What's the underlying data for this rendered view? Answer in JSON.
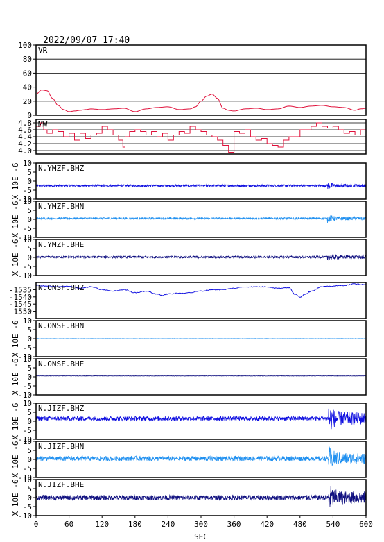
{
  "header": {
    "datetime": "2022/09/07  17:40"
  },
  "chart_data": {
    "type": "line",
    "xlabel": "SEC",
    "xlim": [
      0,
      600
    ],
    "xticks": [
      0,
      60,
      120,
      180,
      240,
      300,
      360,
      420,
      480,
      540,
      600
    ],
    "colors": {
      "red": "#e0103a",
      "blue": "#1010e0",
      "lightblue": "#2090f0",
      "navy": "#101080"
    },
    "panels": [
      {
        "label": "VR",
        "ylim": [
          0,
          100
        ],
        "yticks": [
          0,
          20,
          40,
          60,
          80,
          100
        ],
        "yticklabels": [
          "0",
          "20",
          "40",
          "60",
          "80",
          "100"
        ],
        "grid": true,
        "color": "red",
        "x": [
          0,
          10,
          20,
          30,
          40,
          50,
          60,
          70,
          80,
          90,
          100,
          120,
          140,
          160,
          180,
          200,
          220,
          240,
          260,
          280,
          290,
          300,
          310,
          320,
          330,
          340,
          350,
          360,
          380,
          400,
          420,
          440,
          460,
          480,
          500,
          520,
          540,
          560,
          580,
          590,
          600
        ],
        "y": [
          30,
          36,
          35,
          24,
          14,
          8,
          5,
          6,
          7,
          8,
          9,
          8,
          9,
          10,
          5,
          9,
          11,
          12,
          8,
          9,
          12,
          20,
          27,
          30,
          24,
          10,
          7,
          6,
          9,
          10,
          8,
          9,
          13,
          11,
          13,
          14,
          12,
          11,
          7,
          9,
          10
        ]
      },
      {
        "label": "MW",
        "ylim": [
          3.9,
          4.9
        ],
        "yticks": [
          4.0,
          4.2,
          4.4,
          4.6,
          4.8
        ],
        "yticklabels": [
          "4.0",
          "4.2",
          "4.4",
          "4.6",
          "4.8"
        ],
        "grid": true,
        "color": "red",
        "x": [
          0,
          8,
          14,
          20,
          30,
          40,
          50,
          60,
          70,
          80,
          90,
          100,
          110,
          120,
          130,
          140,
          150,
          158,
          162,
          170,
          180,
          190,
          200,
          210,
          220,
          230,
          240,
          250,
          260,
          270,
          280,
          290,
          300,
          310,
          320,
          330,
          340,
          350,
          360,
          370,
          380,
          390,
          400,
          410,
          420,
          430,
          440,
          450,
          460,
          480,
          500,
          510,
          520,
          530,
          540,
          550,
          560,
          570,
          580,
          590,
          600
        ],
        "y": [
          4.7,
          4.8,
          4.6,
          4.5,
          4.6,
          4.55,
          4.4,
          4.5,
          4.3,
          4.5,
          4.35,
          4.45,
          4.5,
          4.7,
          4.6,
          4.45,
          4.3,
          4.1,
          4.4,
          4.55,
          4.6,
          4.55,
          4.45,
          4.55,
          4.4,
          4.5,
          4.3,
          4.45,
          4.55,
          4.5,
          4.7,
          4.6,
          4.55,
          4.45,
          4.4,
          4.3,
          4.15,
          3.95,
          4.55,
          4.5,
          4.6,
          4.4,
          4.3,
          4.35,
          4.2,
          4.15,
          4.1,
          4.3,
          4.4,
          4.6,
          4.7,
          4.8,
          4.7,
          4.65,
          4.7,
          4.6,
          4.5,
          4.55,
          4.45,
          4.6,
          4.55
        ]
      },
      {
        "label": "N.YMZF.BHZ",
        "ylabel": "X 10E -6",
        "ylim": [
          -10,
          10
        ],
        "yticks": [
          -10,
          -5,
          0,
          5,
          10
        ],
        "yticklabels": [
          "-10",
          "-5",
          "0",
          "5",
          "10"
        ],
        "color": "blue",
        "trace": {
          "center": -2.5,
          "amp": 0.6,
          "burst_start": 530,
          "burst_amp": 0.9
        }
      },
      {
        "label": "N.YMZF.BHN",
        "ylabel": "X 10E -6",
        "ylim": [
          -10,
          10
        ],
        "yticks": [
          -10,
          -5,
          0,
          5,
          10
        ],
        "yticklabels": [
          "-10",
          "-5",
          "0",
          "5",
          "10"
        ],
        "color": "lightblue",
        "trace": {
          "center": 0.5,
          "amp": 0.5,
          "burst_start": 530,
          "burst_amp": 1.0
        }
      },
      {
        "label": "N.YMZF.BHE",
        "ylabel": "X 10E -6",
        "ylim": [
          -10,
          10
        ],
        "yticks": [
          -10,
          -5,
          0,
          5,
          10
        ],
        "yticklabels": [
          "-10",
          "-5",
          "0",
          "5",
          "10"
        ],
        "color": "navy",
        "trace": {
          "center": 0.2,
          "amp": 0.6,
          "burst_start": 530,
          "burst_amp": 1.0
        }
      },
      {
        "label": "N.ONSF.BHZ",
        "ylim": [
          -1555,
          -1530
        ],
        "yticks": [
          -1535,
          -1540,
          -1545,
          -1550
        ],
        "yticklabels": [
          "-1535",
          "-1540",
          "-1545",
          "-1550"
        ],
        "color": "blue",
        "x": [
          0,
          20,
          40,
          60,
          80,
          100,
          120,
          140,
          160,
          180,
          200,
          220,
          230,
          240,
          260,
          280,
          300,
          320,
          340,
          360,
          380,
          400,
          420,
          440,
          460,
          470,
          480,
          490,
          500,
          520,
          540,
          560,
          580,
          600
        ],
        "y": [
          -1532,
          -1532.5,
          -1533,
          -1532.5,
          -1534,
          -1533,
          -1535,
          -1536,
          -1535,
          -1537,
          -1536,
          -1538,
          -1539,
          -1538,
          -1537.5,
          -1537,
          -1536,
          -1535,
          -1535,
          -1534,
          -1533,
          -1533,
          -1533,
          -1534,
          -1533.5,
          -1538,
          -1540,
          -1538,
          -1536,
          -1533,
          -1532.5,
          -1532,
          -1531,
          -1531.5
        ]
      },
      {
        "label": "N.ONSF.BHN",
        "ylabel": "X 10E -6",
        "ylim": [
          -10,
          10
        ],
        "yticks": [
          -10,
          -5,
          0,
          5,
          10
        ],
        "yticklabels": [
          "-10",
          "-5",
          "0",
          "5",
          "10"
        ],
        "color": "lightblue",
        "trace": {
          "center": 0.0,
          "amp": 0.1,
          "burst_start": 600,
          "burst_amp": 0.1
        }
      },
      {
        "label": "N.ONSF.BHE",
        "ylabel": "X 10E -6",
        "ylim": [
          -10,
          10
        ],
        "yticks": [
          -10,
          -5,
          0,
          5,
          10
        ],
        "yticklabels": [
          "-10",
          "-5",
          "0",
          "5",
          "10"
        ],
        "color": "navy",
        "trace": {
          "center": 0.5,
          "amp": 0.1,
          "burst_start": 600,
          "burst_amp": 0.1
        }
      },
      {
        "label": "N.JIZF.BHZ",
        "ylabel": "X 10E -6",
        "ylim": [
          -10,
          10
        ],
        "yticks": [
          -10,
          -5,
          0,
          5,
          10
        ],
        "yticklabels": [
          "-10",
          "-5",
          "0",
          "5",
          "10"
        ],
        "color": "blue",
        "trace": {
          "center": 1.5,
          "amp": 1.2,
          "burst_start": 532,
          "burst_amp": 3.5
        }
      },
      {
        "label": "N.JIZF.BHN",
        "ylabel": "X 10E -6",
        "ylim": [
          -10,
          10
        ],
        "yticks": [
          -10,
          -5,
          0,
          5,
          10
        ],
        "yticklabels": [
          "-10",
          "-5",
          "0",
          "5",
          "10"
        ],
        "color": "lightblue",
        "trace": {
          "center": 0.5,
          "amp": 1.3,
          "burst_start": 532,
          "burst_amp": 3.0
        }
      },
      {
        "label": "N.JIZF.BHE",
        "ylabel": "X 10E -6",
        "ylim": [
          -10,
          10
        ],
        "yticks": [
          -10,
          -5,
          0,
          5,
          10
        ],
        "yticklabels": [
          "-10",
          "-5",
          "0",
          "5",
          "10"
        ],
        "color": "navy",
        "trace": {
          "center": 0.0,
          "amp": 1.4,
          "burst_start": 532,
          "burst_amp": 3.5
        }
      }
    ]
  }
}
